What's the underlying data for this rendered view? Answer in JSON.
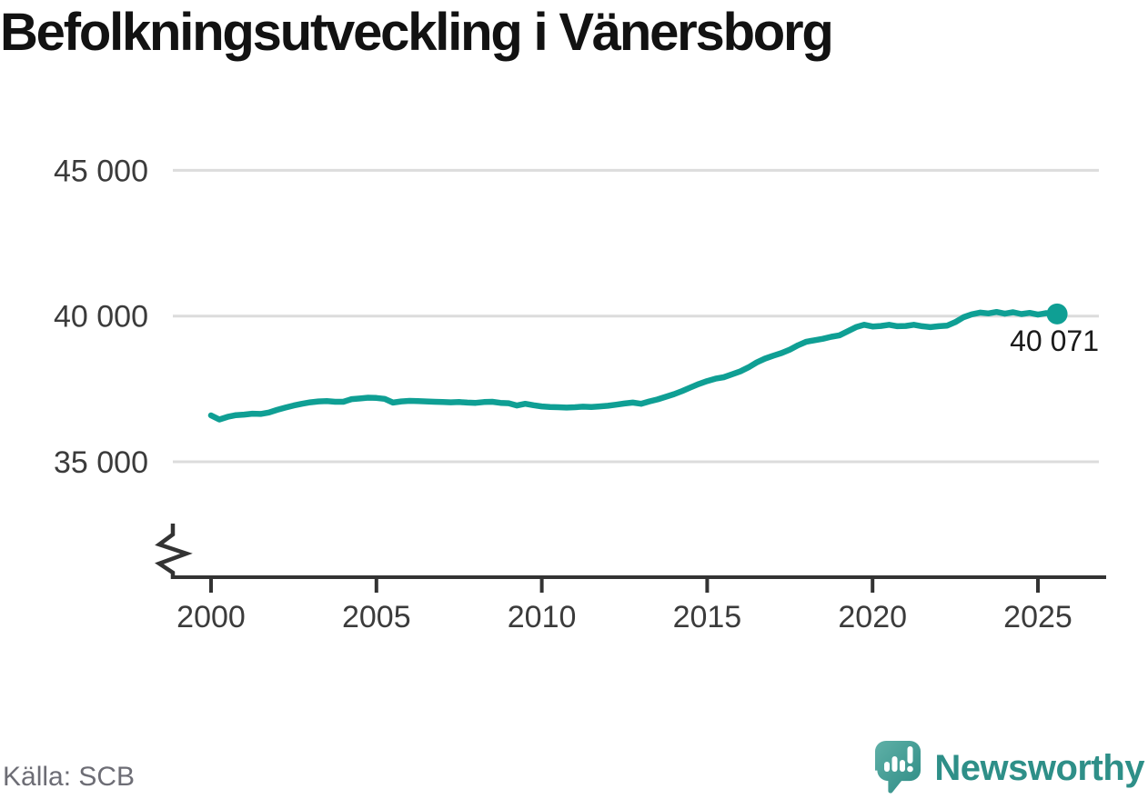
{
  "title": "Befolkningsutveckling i Vänersborg",
  "source": "Källa: SCB",
  "logo": {
    "text": "Newsworthy",
    "icon": "newsworthy-speech-bubble-bars-icon"
  },
  "colors": {
    "line": "#0f9f94",
    "grid": "#dcdcdc",
    "axis": "#333333",
    "tick_label": "#3b3b3b",
    "title": "#121212",
    "annotation": "#1a1a1a",
    "source_text": "#6d6d75",
    "logo_text": "#2e8f88",
    "logo_badge_light": "#5fb0a7",
    "logo_badge_dark": "#2e8c85"
  },
  "chart_data": {
    "type": "line",
    "title": "Befolkningsutveckling i Vänersborg",
    "xlabel": "",
    "ylabel": "",
    "x_ticks": [
      2000,
      2005,
      2010,
      2015,
      2020,
      2025
    ],
    "x_tick_labels": [
      "2000",
      "2005",
      "2010",
      "2015",
      "2020",
      "2025"
    ],
    "y_ticks": [
      35000,
      40000,
      45000
    ],
    "y_tick_labels": [
      "35 000",
      "40 000",
      "45 000"
    ],
    "ylim_labeled": [
      35000,
      45000
    ],
    "xlim": [
      1998.9,
      2026.9
    ],
    "axis_break": true,
    "grid": "horizontal",
    "legend": "none",
    "end_label": "40 071",
    "end_point": {
      "x": 2025.58,
      "y": 40071
    },
    "series": [
      {
        "name": "Befolkning",
        "points": [
          [
            2000.0,
            36590
          ],
          [
            2000.25,
            36450
          ],
          [
            2000.5,
            36540
          ],
          [
            2000.75,
            36600
          ],
          [
            2001.0,
            36620
          ],
          [
            2001.25,
            36650
          ],
          [
            2001.5,
            36640
          ],
          [
            2001.75,
            36690
          ],
          [
            2002.0,
            36780
          ],
          [
            2002.25,
            36860
          ],
          [
            2002.5,
            36930
          ],
          [
            2002.75,
            36990
          ],
          [
            2003.0,
            37040
          ],
          [
            2003.25,
            37070
          ],
          [
            2003.5,
            37080
          ],
          [
            2003.75,
            37060
          ],
          [
            2004.0,
            37060
          ],
          [
            2004.25,
            37150
          ],
          [
            2004.5,
            37170
          ],
          [
            2004.75,
            37200
          ],
          [
            2005.0,
            37190
          ],
          [
            2005.25,
            37160
          ],
          [
            2005.5,
            37030
          ],
          [
            2005.75,
            37070
          ],
          [
            2006.0,
            37090
          ],
          [
            2006.25,
            37080
          ],
          [
            2006.5,
            37070
          ],
          [
            2006.75,
            37060
          ],
          [
            2007.0,
            37050
          ],
          [
            2007.25,
            37040
          ],
          [
            2007.5,
            37050
          ],
          [
            2007.75,
            37030
          ],
          [
            2008.0,
            37020
          ],
          [
            2008.25,
            37050
          ],
          [
            2008.5,
            37060
          ],
          [
            2008.75,
            37020
          ],
          [
            2009.0,
            37010
          ],
          [
            2009.25,
            36930
          ],
          [
            2009.5,
            36990
          ],
          [
            2009.75,
            36940
          ],
          [
            2010.0,
            36900
          ],
          [
            2010.25,
            36880
          ],
          [
            2010.5,
            36870
          ],
          [
            2010.75,
            36860
          ],
          [
            2011.0,
            36870
          ],
          [
            2011.25,
            36890
          ],
          [
            2011.5,
            36880
          ],
          [
            2011.75,
            36900
          ],
          [
            2012.0,
            36920
          ],
          [
            2012.25,
            36960
          ],
          [
            2012.5,
            37000
          ],
          [
            2012.75,
            37030
          ],
          [
            2013.0,
            36990
          ],
          [
            2013.25,
            37070
          ],
          [
            2013.5,
            37140
          ],
          [
            2013.75,
            37230
          ],
          [
            2014.0,
            37320
          ],
          [
            2014.25,
            37430
          ],
          [
            2014.5,
            37550
          ],
          [
            2014.75,
            37670
          ],
          [
            2015.0,
            37770
          ],
          [
            2015.25,
            37850
          ],
          [
            2015.5,
            37900
          ],
          [
            2015.75,
            38000
          ],
          [
            2016.0,
            38100
          ],
          [
            2016.25,
            38240
          ],
          [
            2016.5,
            38410
          ],
          [
            2016.75,
            38540
          ],
          [
            2017.0,
            38640
          ],
          [
            2017.25,
            38730
          ],
          [
            2017.5,
            38850
          ],
          [
            2017.75,
            39000
          ],
          [
            2018.0,
            39120
          ],
          [
            2018.25,
            39170
          ],
          [
            2018.5,
            39220
          ],
          [
            2018.75,
            39290
          ],
          [
            2019.0,
            39340
          ],
          [
            2019.25,
            39480
          ],
          [
            2019.5,
            39620
          ],
          [
            2019.75,
            39700
          ],
          [
            2020.0,
            39640
          ],
          [
            2020.25,
            39660
          ],
          [
            2020.5,
            39700
          ],
          [
            2020.75,
            39650
          ],
          [
            2021.0,
            39660
          ],
          [
            2021.25,
            39700
          ],
          [
            2021.5,
            39650
          ],
          [
            2021.75,
            39620
          ],
          [
            2022.0,
            39650
          ],
          [
            2022.25,
            39670
          ],
          [
            2022.5,
            39790
          ],
          [
            2022.75,
            39960
          ],
          [
            2023.0,
            40060
          ],
          [
            2023.25,
            40120
          ],
          [
            2023.5,
            40090
          ],
          [
            2023.75,
            40140
          ],
          [
            2024.0,
            40080
          ],
          [
            2024.25,
            40130
          ],
          [
            2024.5,
            40070
          ],
          [
            2024.75,
            40110
          ],
          [
            2025.0,
            40050
          ],
          [
            2025.25,
            40100
          ],
          [
            2025.58,
            40071
          ]
        ]
      }
    ]
  }
}
